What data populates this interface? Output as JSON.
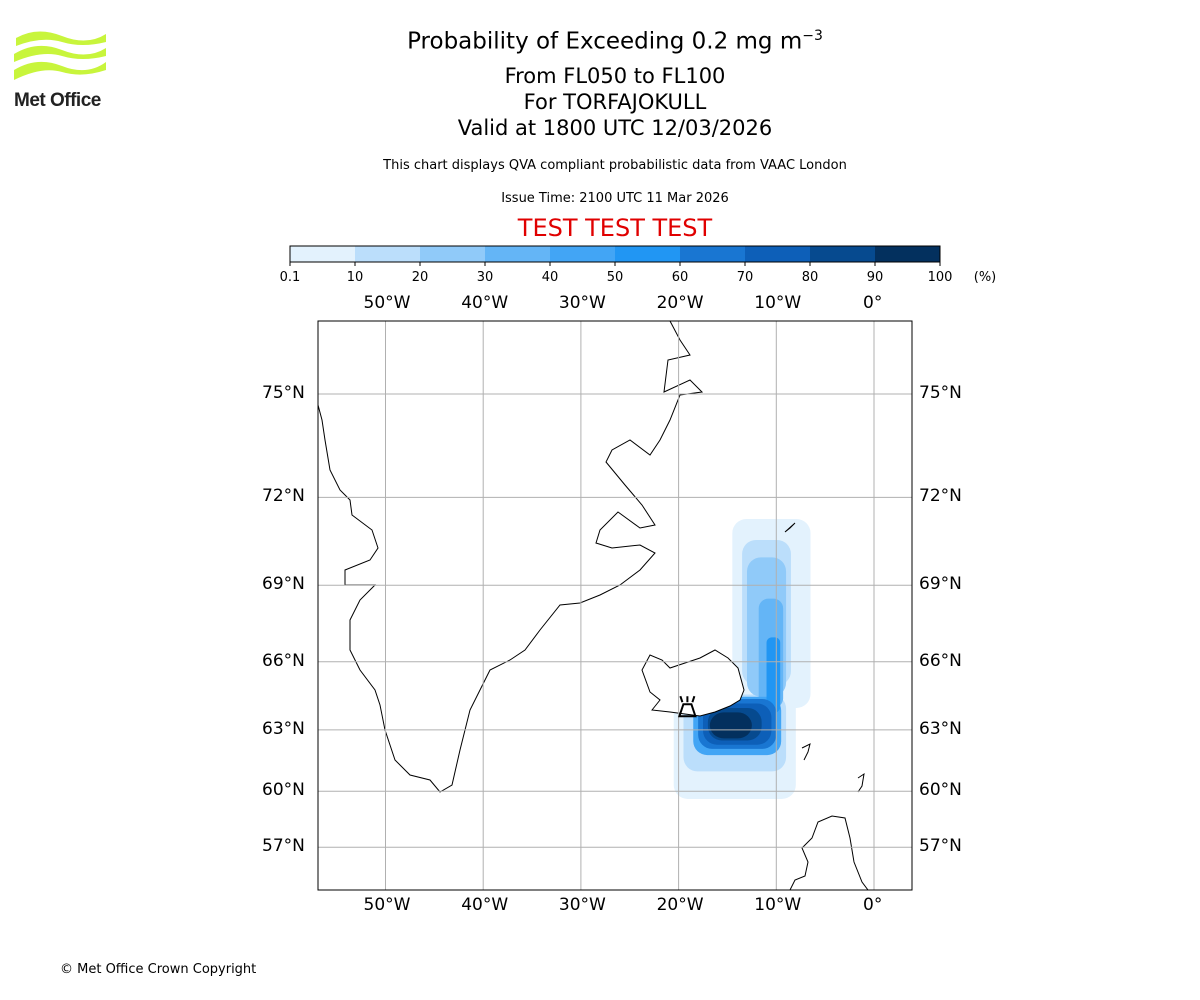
{
  "header": {
    "title": "Probability of Exceeding 0.2 mg m",
    "title_sup": "−3",
    "levels": "From FL050 to FL100",
    "volcano": "For TORFAJOKULL",
    "valid": "Valid at 1800 UTC 12/03/2026",
    "subtitle": "This chart displays QVA compliant probabilistic data from VAAC London",
    "issue_time": "Issue Time: 2100 UTC 11 Mar 2026",
    "test_banner": "TEST TEST TEST"
  },
  "logo": {
    "text": "Met Office",
    "color": "#c8f53c"
  },
  "footer": {
    "copyright": "© Met Office Crown Copyright"
  },
  "chart_data": {
    "type": "heatmap",
    "colorbar": {
      "bounds": [
        0.1,
        10,
        20,
        30,
        40,
        50,
        60,
        70,
        80,
        90,
        100
      ],
      "tick_labels": [
        "0.1",
        "10",
        "20",
        "30",
        "40",
        "50",
        "60",
        "70",
        "80",
        "90",
        "100"
      ],
      "unit": "(%)",
      "colors": [
        "#e3f2fd",
        "#bbdefb",
        "#90caf9",
        "#64b5f6",
        "#42a5f5",
        "#2196f3",
        "#1976d2",
        "#0d5fb8",
        "#064a8f",
        "#03305e"
      ]
    },
    "lon_range": [
      -57,
      4
    ],
    "lat_range": [
      55.5,
      77.4
    ],
    "lon_ticks": [
      {
        "value": -50,
        "label": "50°W"
      },
      {
        "value": -40,
        "label": "40°W"
      },
      {
        "value": -30,
        "label": "30°W"
      },
      {
        "value": -20,
        "label": "20°W"
      },
      {
        "value": -10,
        "label": "10°W"
      },
      {
        "value": 0,
        "label": "0°"
      }
    ],
    "lat_ticks": [
      {
        "value": 75,
        "label": "75°N"
      },
      {
        "value": 72,
        "label": "72°N"
      },
      {
        "value": 69,
        "label": "69°N"
      },
      {
        "value": 66,
        "label": "66°N"
      },
      {
        "value": 63,
        "label": "63°N"
      },
      {
        "value": 60,
        "label": "60°N"
      },
      {
        "value": 57,
        "label": "57°N"
      }
    ],
    "grid": true,
    "volcano_location": {
      "lon": -19.1,
      "lat": 63.9
    },
    "probability_regions": [
      {
        "lon": [
          -14.5,
          -6.5
        ],
        "lat": [
          64,
          71.3
        ],
        "bin": 0
      },
      {
        "lon": [
          -20.5,
          -8
        ],
        "lat": [
          59.6,
          64.6
        ],
        "bin": 0
      },
      {
        "lon": [
          -13.5,
          -8.5
        ],
        "lat": [
          65,
          70.6
        ],
        "bin": 1
      },
      {
        "lon": [
          -19.5,
          -9
        ],
        "lat": [
          61,
          64.6
        ],
        "bin": 1
      },
      {
        "lon": [
          -13,
          -9
        ],
        "lat": [
          64.5,
          70
        ],
        "bin": 2
      },
      {
        "lon": [
          -11.8,
          -9.3
        ],
        "lat": [
          64,
          68.5
        ],
        "bin": 3
      },
      {
        "lon": [
          -18.5,
          -9.5
        ],
        "lat": [
          61.8,
          64.5
        ],
        "bin": 4
      },
      {
        "lon": [
          -11,
          -9.6
        ],
        "lat": [
          63.8,
          67
        ],
        "bin": 5
      },
      {
        "lon": [
          -18,
          -10
        ],
        "lat": [
          62.1,
          64.4
        ],
        "bin": 6
      },
      {
        "lon": [
          -17.5,
          -10.5
        ],
        "lat": [
          62.3,
          64.2
        ],
        "bin": 7
      },
      {
        "lon": [
          -17,
          -11.5
        ],
        "lat": [
          62.5,
          64
        ],
        "bin": 8
      },
      {
        "lon": [
          -16.8,
          -12.5
        ],
        "lat": [
          62.6,
          63.8
        ],
        "bin": 9
      }
    ]
  }
}
